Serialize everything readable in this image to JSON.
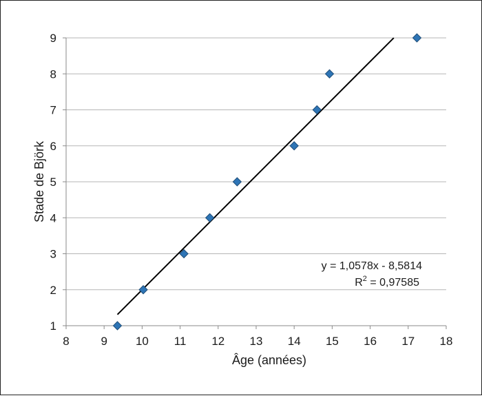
{
  "chart_data": {
    "type": "scatter",
    "xlabel": "Âge (années)",
    "ylabel": "Stade de Björk",
    "xlim": [
      8,
      18
    ],
    "ylim": [
      1,
      9
    ],
    "x_ticks": [
      8,
      9,
      10,
      11,
      12,
      13,
      14,
      15,
      16,
      17,
      18
    ],
    "y_ticks": [
      1,
      2,
      3,
      4,
      5,
      6,
      7,
      8,
      9
    ],
    "grid": "horizontal",
    "points": [
      {
        "x": 9.35,
        "y": 1
      },
      {
        "x": 10.03,
        "y": 2
      },
      {
        "x": 11.1,
        "y": 3
      },
      {
        "x": 11.78,
        "y": 4
      },
      {
        "x": 12.5,
        "y": 5
      },
      {
        "x": 14.0,
        "y": 6
      },
      {
        "x": 14.6,
        "y": 7
      },
      {
        "x": 14.93,
        "y": 8
      },
      {
        "x": 17.23,
        "y": 9
      }
    ],
    "trendline": {
      "slope": 1.0578,
      "intercept": -8.5814,
      "x_start": 9.35,
      "x_end": 16.62,
      "equation_label": "y = 1,0578x - 8,5814",
      "r2_label_prefix": "R",
      "r2_label_exp": "2",
      "r2_label_value": " = 0,97585"
    },
    "colors": {
      "point": "#2E75B6",
      "point_edge": "#1F4E79",
      "trendline": "#000000",
      "grid": "#b5b5b5",
      "axis": "#8a8a8a"
    }
  }
}
